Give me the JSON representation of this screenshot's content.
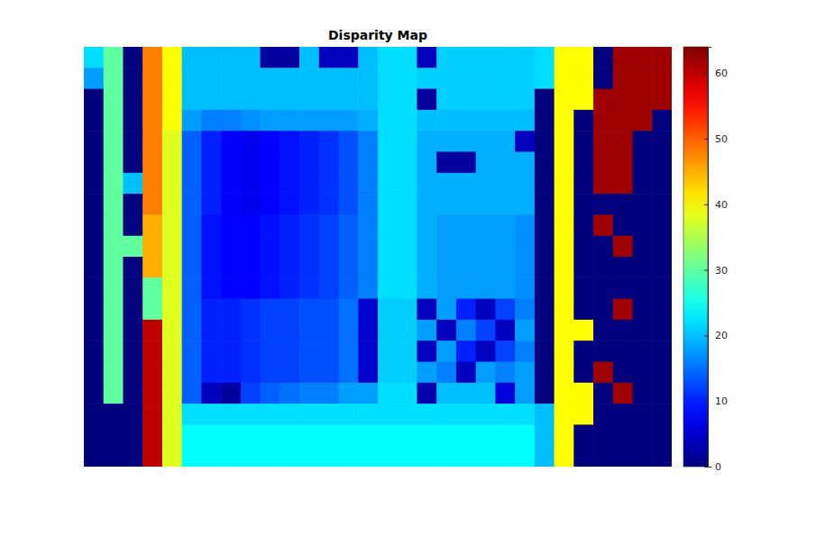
{
  "chart_data": {
    "type": "heatmap",
    "title": "Disparity Map",
    "color": "jet",
    "color_range": [
      0,
      64
    ],
    "color_ticks": [
      0,
      10,
      20,
      30,
      40,
      50,
      60
    ],
    "cells": [
      [
        22,
        30,
        0,
        48,
        40,
        20,
        20,
        20,
        20,
        2,
        2,
        20,
        4,
        4,
        20,
        22,
        22,
        4,
        21,
        21,
        21,
        21,
        21,
        22,
        40,
        40,
        0,
        62,
        62,
        62
      ],
      [
        18,
        30,
        0,
        48,
        40,
        20,
        20,
        20,
        20,
        20,
        20,
        20,
        20,
        20,
        20,
        22,
        22,
        21,
        21,
        21,
        21,
        21,
        21,
        22,
        40,
        40,
        0,
        62,
        62,
        62
      ],
      [
        0,
        30,
        0,
        48,
        40,
        20,
        20,
        20,
        20,
        20,
        20,
        20,
        20,
        20,
        20,
        22,
        22,
        2,
        21,
        21,
        21,
        21,
        21,
        0,
        40,
        40,
        62,
        62,
        62,
        62
      ],
      [
        0,
        30,
        0,
        48,
        40,
        18,
        16,
        16,
        17,
        18,
        18,
        18,
        18,
        18,
        19,
        22,
        22,
        20,
        20,
        20,
        20,
        20,
        20,
        0,
        40,
        0,
        62,
        62,
        62,
        0
      ],
      [
        0,
        30,
        0,
        48,
        38,
        14,
        10,
        8,
        7,
        8,
        9,
        10,
        11,
        13,
        16,
        22,
        22,
        19,
        19,
        19,
        19,
        19,
        4,
        0,
        40,
        0,
        62,
        62,
        0,
        0
      ],
      [
        0,
        30,
        0,
        48,
        38,
        14,
        10,
        8,
        7,
        8,
        9,
        10,
        11,
        13,
        16,
        22,
        22,
        19,
        2,
        2,
        19,
        19,
        19,
        0,
        40,
        0,
        62,
        62,
        0,
        0
      ],
      [
        0,
        30,
        20,
        48,
        38,
        14,
        10,
        8,
        7,
        8,
        9,
        10,
        11,
        13,
        16,
        22,
        22,
        19,
        19,
        19,
        19,
        19,
        19,
        0,
        40,
        0,
        62,
        62,
        0,
        0
      ],
      [
        0,
        30,
        0,
        48,
        38,
        14,
        10,
        8,
        7,
        8,
        9,
        10,
        11,
        13,
        16,
        22,
        22,
        19,
        19,
        19,
        19,
        19,
        19,
        0,
        40,
        0,
        0,
        0,
        0,
        0
      ],
      [
        0,
        30,
        0,
        45,
        38,
        14,
        9,
        8,
        8,
        9,
        10,
        11,
        12,
        14,
        16,
        22,
        22,
        19,
        18,
        18,
        18,
        18,
        17,
        0,
        40,
        0,
        62,
        0,
        0,
        0
      ],
      [
        0,
        30,
        30,
        45,
        38,
        14,
        9,
        8,
        8,
        9,
        10,
        11,
        12,
        14,
        16,
        22,
        22,
        19,
        18,
        18,
        18,
        18,
        17,
        0,
        40,
        0,
        0,
        62,
        0,
        0
      ],
      [
        0,
        30,
        0,
        45,
        38,
        14,
        9,
        8,
        8,
        9,
        10,
        11,
        12,
        14,
        16,
        22,
        22,
        19,
        18,
        18,
        18,
        18,
        17,
        0,
        40,
        0,
        0,
        0,
        0,
        0
      ],
      [
        0,
        30,
        0,
        30,
        38,
        14,
        9,
        8,
        8,
        9,
        10,
        11,
        12,
        14,
        16,
        22,
        22,
        19,
        18,
        18,
        18,
        18,
        17,
        0,
        40,
        0,
        0,
        0,
        0,
        0
      ],
      [
        0,
        30,
        0,
        30,
        38,
        14,
        10,
        10,
        11,
        12,
        12,
        13,
        13,
        15,
        5,
        21,
        21,
        4,
        18,
        10,
        4,
        12,
        16,
        0,
        40,
        0,
        0,
        62,
        0,
        0
      ],
      [
        0,
        30,
        0,
        60,
        38,
        14,
        10,
        10,
        11,
        12,
        12,
        13,
        13,
        15,
        5,
        21,
        21,
        18,
        4,
        16,
        12,
        4,
        18,
        0,
        40,
        40,
        0,
        0,
        0,
        0
      ],
      [
        0,
        30,
        0,
        60,
        38,
        14,
        10,
        10,
        11,
        12,
        12,
        13,
        13,
        15,
        5,
        21,
        21,
        4,
        18,
        10,
        4,
        12,
        16,
        0,
        40,
        0,
        0,
        0,
        0,
        0
      ],
      [
        0,
        30,
        0,
        60,
        38,
        14,
        10,
        10,
        11,
        12,
        12,
        13,
        13,
        15,
        5,
        21,
        21,
        18,
        16,
        4,
        18,
        16,
        18,
        0,
        40,
        0,
        62,
        0,
        0,
        0
      ],
      [
        0,
        30,
        0,
        60,
        38,
        14,
        4,
        2,
        12,
        14,
        15,
        16,
        16,
        18,
        18,
        22,
        22,
        3,
        20,
        20,
        20,
        6,
        18,
        0,
        40,
        40,
        0,
        62,
        0,
        0
      ],
      [
        0,
        0,
        0,
        60,
        38,
        22,
        22,
        22,
        22,
        22,
        22,
        22,
        22,
        22,
        22,
        22,
        22,
        22,
        22,
        22,
        22,
        22,
        22,
        20,
        40,
        40,
        0,
        0,
        0,
        0
      ],
      [
        0,
        0,
        0,
        60,
        38,
        24,
        24,
        24,
        24,
        24,
        24,
        24,
        24,
        24,
        24,
        24,
        24,
        24,
        24,
        24,
        24,
        24,
        24,
        20,
        40,
        0,
        0,
        0,
        0,
        0
      ],
      [
        0,
        0,
        0,
        60,
        38,
        24,
        24,
        24,
        24,
        24,
        24,
        24,
        24,
        24,
        24,
        24,
        24,
        24,
        24,
        24,
        24,
        24,
        24,
        20,
        40,
        0,
        0,
        0,
        0,
        0
      ]
    ]
  }
}
